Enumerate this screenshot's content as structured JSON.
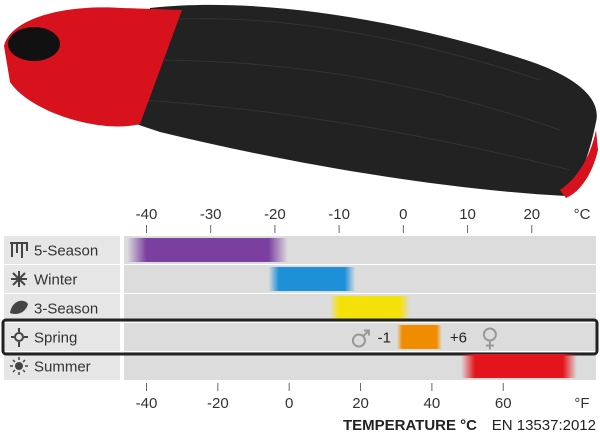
{
  "chart_data": {
    "type": "range",
    "categories": [
      "5-Season",
      "Winter",
      "3-Season",
      "Spring",
      "Summer"
    ],
    "ranges": [
      [
        -43,
        -18
      ],
      [
        -21,
        -7.5
      ],
      [
        -11.5,
        1
      ],
      [
        -1,
        6
      ],
      [
        9,
        27
      ]
    ],
    "value_labels": [
      null,
      null,
      null,
      [
        "-1",
        "+6"
      ],
      null
    ],
    "colors": [
      "#7b3fa0",
      "#1e90d8",
      "#f5e10a",
      "#f08c00",
      "#e4141c"
    ],
    "highlight": 3,
    "x_label": "°C",
    "xlim": [
      -43.5,
      30
    ],
    "xticks": [
      -40,
      -30,
      -20,
      -10,
      0,
      10,
      20
    ],
    "x2_label": "°F",
    "x2lim": [
      -46.3,
      86
    ],
    "x2ticks": [
      -40,
      -20,
      0,
      20,
      40,
      60
    ],
    "footer_bold": "TEMPERATURE °C",
    "footer": "EN 13537:2012"
  }
}
